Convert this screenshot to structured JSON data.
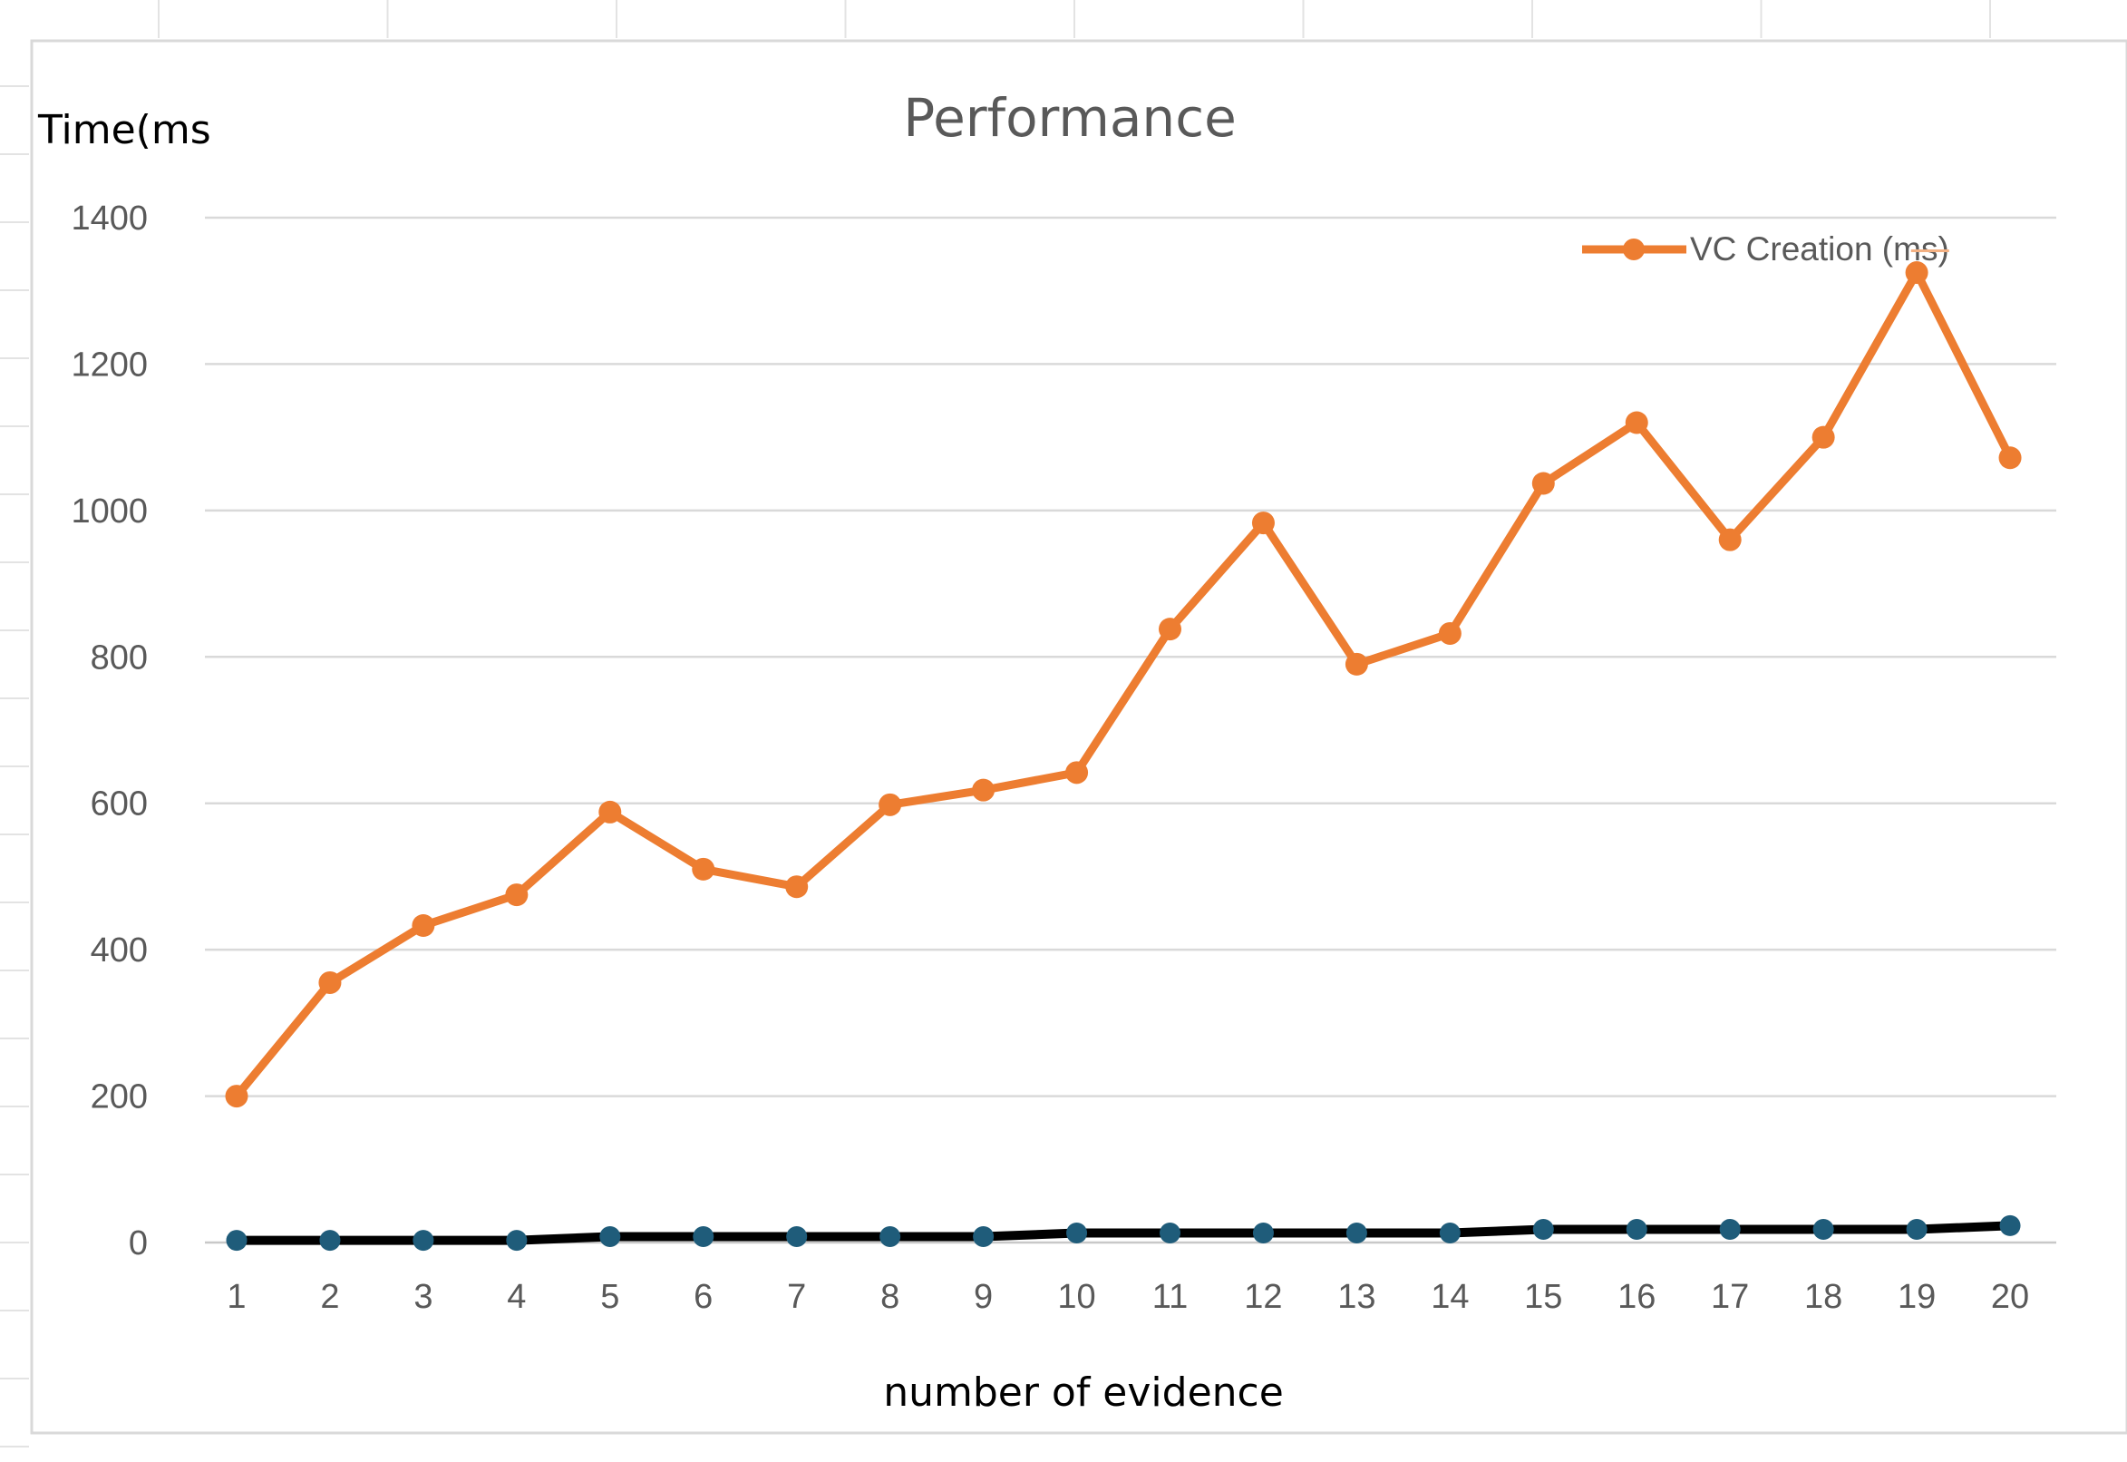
{
  "chart_data": {
    "type": "line",
    "title": "Performance",
    "xlabel": "number of evidence",
    "ylabel": "Time(ms",
    "categories": [
      "1",
      "2",
      "3",
      "4",
      "5",
      "6",
      "7",
      "8",
      "9",
      "10",
      "11",
      "12",
      "13",
      "14",
      "15",
      "16",
      "17",
      "18",
      "19",
      "20"
    ],
    "yticks": [
      "0",
      "200",
      "400",
      "600",
      "800",
      "1000",
      "1200",
      "1400"
    ],
    "ylim": [
      0,
      1400
    ],
    "grid": "horizontal",
    "legend_position": "top-right",
    "series": [
      {
        "name": "VC Creation (ms)",
        "color": "#ED7D31",
        "marker_color": "#ED7D31",
        "in_legend": true,
        "values": [
          200,
          355,
          433,
          475,
          588,
          510,
          486,
          598,
          618,
          642,
          838,
          983,
          790,
          832,
          1037,
          1120,
          960,
          1100,
          1325,
          1072
        ]
      },
      {
        "color": "#000000",
        "marker_color": "#1F5C7A",
        "in_legend": false,
        "values": [
          3,
          3,
          3,
          3,
          8,
          8,
          8,
          8,
          8,
          13,
          13,
          13,
          13,
          13,
          18,
          18,
          18,
          18,
          18,
          23
        ]
      }
    ]
  }
}
